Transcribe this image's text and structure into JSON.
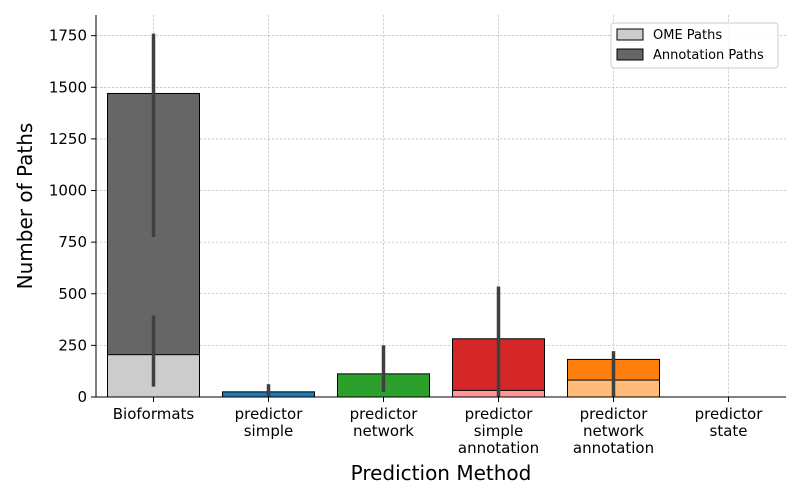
{
  "chart_data": {
    "type": "bar",
    "title": "",
    "xlabel": "Prediction Method",
    "ylabel": "Number of Paths",
    "ylim": [
      0,
      1850
    ],
    "yticks": [
      0,
      250,
      500,
      750,
      1000,
      1250,
      1500,
      1750
    ],
    "grid": true,
    "legend_position": "top-right",
    "stacking": "overlay",
    "categories": [
      [
        "Bioformats"
      ],
      [
        "predictor",
        "simple"
      ],
      [
        "predictor",
        "network"
      ],
      [
        "predictor",
        "simple",
        "annotation"
      ],
      [
        "predictor",
        "network",
        "annotation"
      ],
      [
        "predictor",
        "state"
      ]
    ],
    "series": [
      {
        "name": "Annotation Paths",
        "legend_color": "#666666",
        "colors": [
          "#666666",
          "#1f77b4",
          "#2ca02c",
          "#d62728",
          "#ff7f0e",
          "#9467bd"
        ],
        "values": [
          1470,
          25,
          112,
          282,
          182,
          0
        ],
        "error_low": [
          775,
          0,
          25,
          0,
          0,
          0
        ],
        "error_high": [
          1760,
          62,
          250,
          535,
          222,
          0
        ]
      },
      {
        "name": "OME Paths",
        "legend_color": "#cccccc",
        "colors": [
          "#cccccc",
          "#aec7e8",
          "#98df8a",
          "#ff9896",
          "#ffbb78",
          "#c5b0d5"
        ],
        "values": [
          205,
          0,
          0,
          32,
          82,
          0
        ],
        "error_low": [
          50,
          0,
          0,
          0,
          0,
          0
        ],
        "error_high": [
          395,
          0,
          0,
          0,
          0,
          0
        ]
      }
    ],
    "error_bar_color": "#404040"
  }
}
